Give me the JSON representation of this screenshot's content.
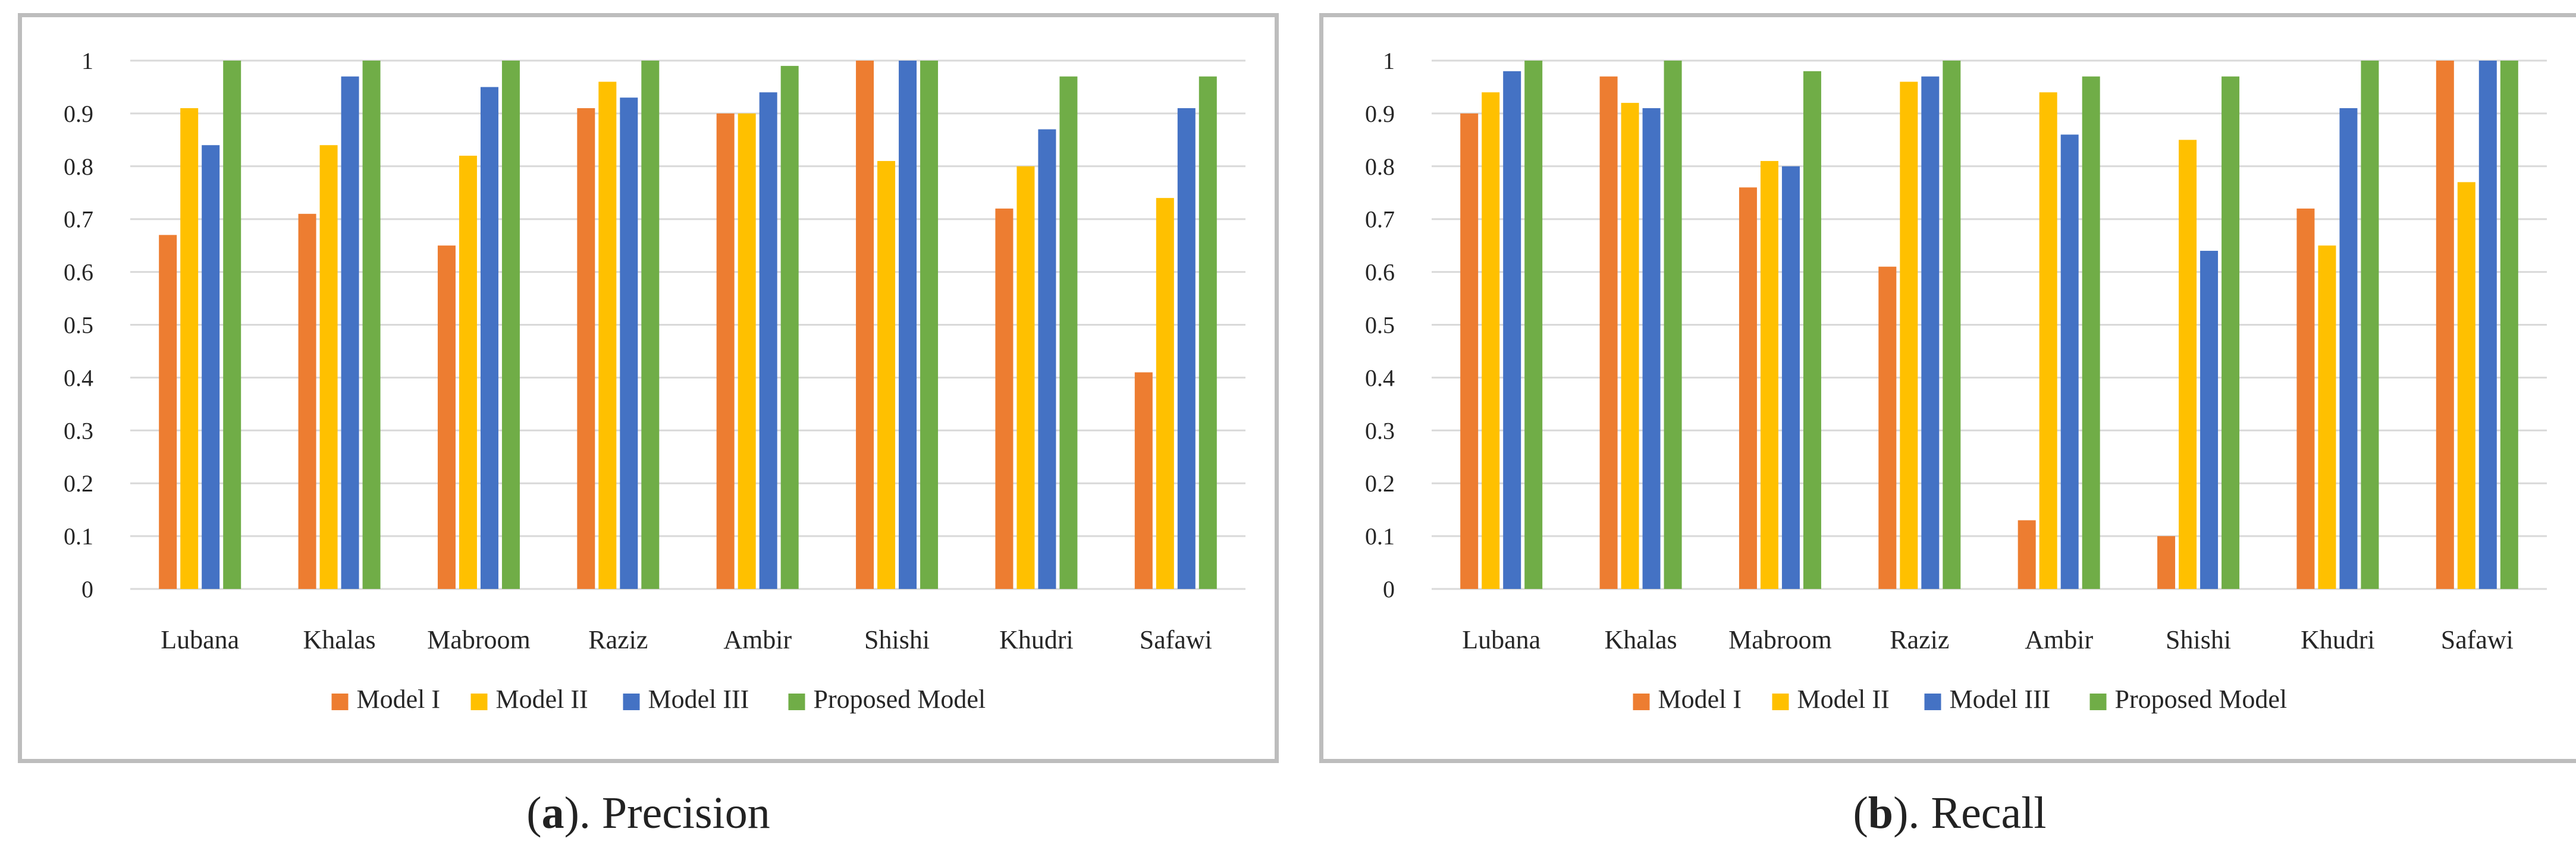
{
  "chart_data": [
    {
      "type": "bar",
      "title": "",
      "categories": [
        "Lubana",
        "Khalas",
        "Mabroom",
        "Raziz",
        "Ambir",
        "Shishi",
        "Khudri",
        "Safawi"
      ],
      "series": [
        {
          "name": "Model I",
          "color": "#ED7D31",
          "values": [
            0.67,
            0.71,
            0.65,
            0.91,
            0.9,
            1.0,
            0.72,
            0.41
          ]
        },
        {
          "name": "Model II",
          "color": "#FFC000",
          "values": [
            0.91,
            0.84,
            0.82,
            0.96,
            0.9,
            0.81,
            0.8,
            0.74
          ]
        },
        {
          "name": "Model III",
          "color": "#4472C4",
          "values": [
            0.84,
            0.97,
            0.95,
            0.93,
            0.94,
            1.0,
            0.87,
            0.91
          ]
        },
        {
          "name": "Proposed Model",
          "color": "#70AD47",
          "values": [
            1.0,
            1.0,
            1.0,
            1.0,
            0.99,
            1.0,
            0.97,
            0.97
          ]
        }
      ],
      "ylim": [
        0,
        1
      ],
      "yticks": [
        "0",
        "0.1",
        "0.2",
        "0.3",
        "0.4",
        "0.5",
        "0.6",
        "0.7",
        "0.8",
        "0.9",
        "1"
      ],
      "xlabel": "",
      "ylabel": "",
      "grid": true,
      "legend": "bottom"
    },
    {
      "type": "bar",
      "title": "",
      "categories": [
        "Lubana",
        "Khalas",
        "Mabroom",
        "Raziz",
        "Ambir",
        "Shishi",
        "Khudri",
        "Safawi"
      ],
      "series": [
        {
          "name": "Model I",
          "color": "#ED7D31",
          "values": [
            0.9,
            0.97,
            0.76,
            0.61,
            0.13,
            0.1,
            0.72,
            1.0
          ]
        },
        {
          "name": "Model II",
          "color": "#FFC000",
          "values": [
            0.94,
            0.92,
            0.81,
            0.96,
            0.94,
            0.85,
            0.65,
            0.77
          ]
        },
        {
          "name": "Model III",
          "color": "#4472C4",
          "values": [
            0.98,
            0.91,
            0.8,
            0.97,
            0.86,
            0.64,
            0.91,
            1.0
          ]
        },
        {
          "name": "Proposed Model",
          "color": "#70AD47",
          "values": [
            1.0,
            1.0,
            0.98,
            1.0,
            0.97,
            0.97,
            1.0,
            1.0
          ]
        }
      ],
      "ylim": [
        0,
        1
      ],
      "yticks": [
        "0",
        "0.1",
        "0.2",
        "0.3",
        "0.4",
        "0.5",
        "0.6",
        "0.7",
        "0.8",
        "0.9",
        "1"
      ],
      "xlabel": "",
      "ylabel": "",
      "grid": true,
      "legend": "bottom"
    }
  ],
  "captions": [
    {
      "letter": "a",
      "open": "(",
      "close": "). Precision"
    },
    {
      "letter": "b",
      "open": "(",
      "close": "). Recall"
    }
  ]
}
